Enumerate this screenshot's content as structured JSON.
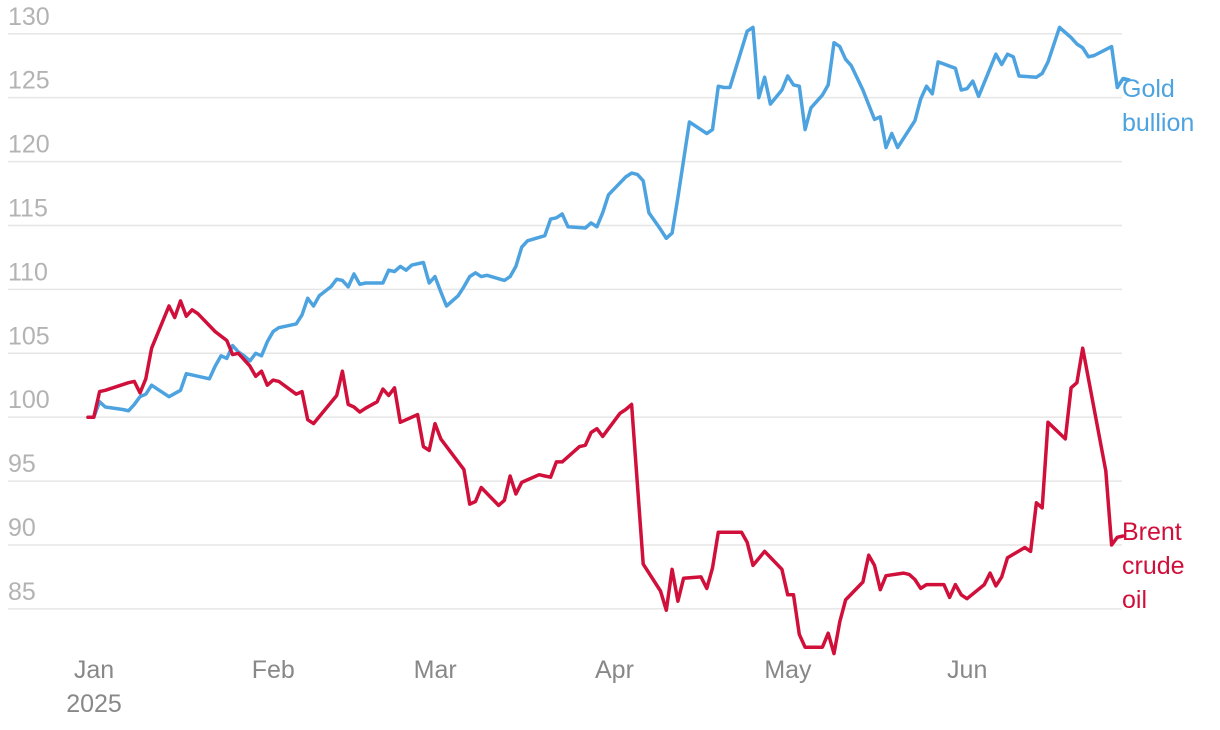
{
  "chart_data": {
    "type": "line",
    "x_axis": {
      "ticks": [
        {
          "date": "2025-01-01",
          "label": "Jan",
          "sublabel": "2025"
        },
        {
          "date": "2025-02-01",
          "label": "Feb"
        },
        {
          "date": "2025-03-01",
          "label": "Mar"
        },
        {
          "date": "2025-04-01",
          "label": "Apr"
        },
        {
          "date": "2025-05-01",
          "label": "May"
        },
        {
          "date": "2025-06-01",
          "label": "Jun"
        }
      ],
      "range": [
        "2025-01-01",
        "2025-06-25"
      ]
    },
    "y_axis": {
      "ticks": [
        85,
        90,
        95,
        100,
        105,
        110,
        115,
        120,
        125,
        130
      ],
      "range": [
        81,
        131
      ],
      "grid": true
    },
    "series": [
      {
        "name": "Gold bullion",
        "label_lines": [
          "Gold",
          "bullion"
        ],
        "color": "#4da3e0",
        "points": [
          [
            "2025-01-01",
            100.0
          ],
          [
            "2025-01-02",
            100.0
          ],
          [
            "2025-01-03",
            101.2
          ],
          [
            "2025-01-04",
            100.8
          ],
          [
            "2025-01-07",
            100.6
          ],
          [
            "2025-01-08",
            100.5
          ],
          [
            "2025-01-09",
            101.0
          ],
          [
            "2025-01-10",
            101.6
          ],
          [
            "2025-01-11",
            101.8
          ],
          [
            "2025-01-12",
            102.5
          ],
          [
            "2025-01-13",
            102.2
          ],
          [
            "2025-01-15",
            101.6
          ],
          [
            "2025-01-17",
            102.1
          ],
          [
            "2025-01-18",
            103.4
          ],
          [
            "2025-01-22",
            103.0
          ],
          [
            "2025-01-23",
            104.0
          ],
          [
            "2025-01-24",
            104.8
          ],
          [
            "2025-01-25",
            104.6
          ],
          [
            "2025-01-26",
            105.6
          ],
          [
            "2025-01-27",
            105.1
          ],
          [
            "2025-01-28",
            104.8
          ],
          [
            "2025-01-29",
            104.4
          ],
          [
            "2025-01-30",
            105.0
          ],
          [
            "2025-01-31",
            104.8
          ],
          [
            "2025-02-01",
            105.9
          ],
          [
            "2025-02-02",
            106.7
          ],
          [
            "2025-02-03",
            107.0
          ],
          [
            "2025-02-06",
            107.3
          ],
          [
            "2025-02-07",
            108.0
          ],
          [
            "2025-02-08",
            109.3
          ],
          [
            "2025-02-09",
            108.7
          ],
          [
            "2025-02-10",
            109.5
          ],
          [
            "2025-02-12",
            110.2
          ],
          [
            "2025-02-13",
            110.8
          ],
          [
            "2025-02-14",
            110.7
          ],
          [
            "2025-02-15",
            110.2
          ],
          [
            "2025-02-16",
            111.2
          ],
          [
            "2025-02-17",
            110.4
          ],
          [
            "2025-02-18",
            110.5
          ],
          [
            "2025-02-21",
            110.5
          ],
          [
            "2025-02-22",
            111.5
          ],
          [
            "2025-02-23",
            111.4
          ],
          [
            "2025-02-24",
            111.8
          ],
          [
            "2025-02-25",
            111.5
          ],
          [
            "2025-02-26",
            111.9
          ],
          [
            "2025-02-28",
            112.1
          ],
          [
            "2025-03-01",
            110.5
          ],
          [
            "2025-03-02",
            111.0
          ],
          [
            "2025-03-03",
            109.8
          ],
          [
            "2025-03-04",
            108.7
          ],
          [
            "2025-03-06",
            109.5
          ],
          [
            "2025-03-07",
            110.2
          ],
          [
            "2025-03-08",
            111.0
          ],
          [
            "2025-03-09",
            111.3
          ],
          [
            "2025-03-10",
            111.0
          ],
          [
            "2025-03-11",
            111.1
          ],
          [
            "2025-03-14",
            110.7
          ],
          [
            "2025-03-15",
            111.0
          ],
          [
            "2025-03-16",
            111.8
          ],
          [
            "2025-03-17",
            113.3
          ],
          [
            "2025-03-18",
            113.8
          ],
          [
            "2025-03-21",
            114.2
          ],
          [
            "2025-03-22",
            115.5
          ],
          [
            "2025-03-23",
            115.6
          ],
          [
            "2025-03-24",
            115.9
          ],
          [
            "2025-03-25",
            114.9
          ],
          [
            "2025-03-28",
            114.8
          ],
          [
            "2025-03-29",
            115.2
          ],
          [
            "2025-03-30",
            114.9
          ],
          [
            "2025-03-31",
            116.0
          ],
          [
            "2025-04-01",
            117.4
          ],
          [
            "2025-04-04",
            118.8
          ],
          [
            "2025-04-05",
            119.1
          ],
          [
            "2025-04-06",
            119.0
          ],
          [
            "2025-04-07",
            118.5
          ],
          [
            "2025-04-08",
            116.0
          ],
          [
            "2025-04-10",
            114.7
          ],
          [
            "2025-04-11",
            114.0
          ],
          [
            "2025-04-12",
            114.4
          ],
          [
            "2025-04-13",
            117.2
          ],
          [
            "2025-04-15",
            123.1
          ],
          [
            "2025-04-18",
            122.2
          ],
          [
            "2025-04-19",
            122.5
          ],
          [
            "2025-04-20",
            125.9
          ],
          [
            "2025-04-21",
            125.8
          ],
          [
            "2025-04-22",
            125.8
          ],
          [
            "2025-04-25",
            130.2
          ],
          [
            "2025-04-26",
            130.5
          ],
          [
            "2025-04-27",
            125.0
          ],
          [
            "2025-04-28",
            126.6
          ],
          [
            "2025-04-29",
            124.5
          ],
          [
            "2025-05-01",
            125.6
          ],
          [
            "2025-05-02",
            126.7
          ],
          [
            "2025-05-03",
            126.0
          ],
          [
            "2025-05-04",
            125.9
          ],
          [
            "2025-05-05",
            122.5
          ],
          [
            "2025-05-06",
            124.2
          ],
          [
            "2025-05-08",
            125.2
          ],
          [
            "2025-05-09",
            126.0
          ],
          [
            "2025-05-10",
            129.3
          ],
          [
            "2025-05-11",
            129.0
          ],
          [
            "2025-05-12",
            128.0
          ],
          [
            "2025-05-13",
            127.5
          ],
          [
            "2025-05-15",
            125.6
          ],
          [
            "2025-05-17",
            123.3
          ],
          [
            "2025-05-18",
            123.5
          ],
          [
            "2025-05-19",
            121.1
          ],
          [
            "2025-05-20",
            122.2
          ],
          [
            "2025-05-21",
            121.1
          ],
          [
            "2025-05-22",
            121.8
          ],
          [
            "2025-05-24",
            123.2
          ],
          [
            "2025-05-25",
            124.9
          ],
          [
            "2025-05-26",
            125.9
          ],
          [
            "2025-05-27",
            125.3
          ],
          [
            "2025-05-28",
            127.8
          ],
          [
            "2025-05-31",
            127.3
          ],
          [
            "2025-06-01",
            125.6
          ],
          [
            "2025-06-02",
            125.7
          ],
          [
            "2025-06-03",
            126.3
          ],
          [
            "2025-06-04",
            125.1
          ],
          [
            "2025-06-07",
            128.4
          ],
          [
            "2025-06-08",
            127.6
          ],
          [
            "2025-06-09",
            128.4
          ],
          [
            "2025-06-10",
            128.2
          ],
          [
            "2025-06-11",
            126.7
          ],
          [
            "2025-06-14",
            126.6
          ],
          [
            "2025-06-15",
            126.9
          ],
          [
            "2025-06-16",
            127.8
          ],
          [
            "2025-06-18",
            130.5
          ],
          [
            "2025-06-19",
            130.1
          ],
          [
            "2025-06-20",
            129.7
          ],
          [
            "2025-06-21",
            129.2
          ],
          [
            "2025-06-22",
            128.9
          ],
          [
            "2025-06-23",
            128.2
          ],
          [
            "2025-06-24",
            128.3
          ],
          [
            "2025-06-27",
            129.0
          ],
          [
            "2025-06-28",
            125.8
          ],
          [
            "2025-06-29",
            126.5
          ],
          [
            "2025-06-30",
            126.4
          ]
        ]
      },
      {
        "name": "Brent crude oil",
        "label_lines": [
          "Brent",
          "crude",
          "oil"
        ],
        "color": "#d0103a",
        "points": [
          [
            "2025-01-01",
            100.0
          ],
          [
            "2025-01-02",
            100.0
          ],
          [
            "2025-01-03",
            102.0
          ],
          [
            "2025-01-04",
            102.1
          ],
          [
            "2025-01-08",
            102.7
          ],
          [
            "2025-01-09",
            102.8
          ],
          [
            "2025-01-10",
            101.9
          ],
          [
            "2025-01-11",
            103.0
          ],
          [
            "2025-01-12",
            105.4
          ],
          [
            "2025-01-15",
            108.7
          ],
          [
            "2025-01-16",
            107.8
          ],
          [
            "2025-01-17",
            109.1
          ],
          [
            "2025-01-18",
            107.9
          ],
          [
            "2025-01-19",
            108.4
          ],
          [
            "2025-01-20",
            108.1
          ],
          [
            "2025-01-23",
            106.7
          ],
          [
            "2025-01-25",
            106.0
          ],
          [
            "2025-01-26",
            104.9
          ],
          [
            "2025-01-27",
            105.0
          ],
          [
            "2025-01-29",
            104.0
          ],
          [
            "2025-01-30",
            103.2
          ],
          [
            "2025-01-31",
            103.6
          ],
          [
            "2025-02-01",
            102.5
          ],
          [
            "2025-02-02",
            102.9
          ],
          [
            "2025-02-03",
            102.8
          ],
          [
            "2025-02-06",
            101.8
          ],
          [
            "2025-02-07",
            102.0
          ],
          [
            "2025-02-08",
            99.8
          ],
          [
            "2025-02-09",
            99.5
          ],
          [
            "2025-02-13",
            101.7
          ],
          [
            "2025-02-14",
            103.6
          ],
          [
            "2025-02-15",
            101.0
          ],
          [
            "2025-02-16",
            100.8
          ],
          [
            "2025-02-17",
            100.4
          ],
          [
            "2025-02-18",
            100.7
          ],
          [
            "2025-02-20",
            101.2
          ],
          [
            "2025-02-21",
            102.2
          ],
          [
            "2025-02-22",
            101.7
          ],
          [
            "2025-02-23",
            102.3
          ],
          [
            "2025-02-24",
            99.6
          ],
          [
            "2025-02-27",
            100.2
          ],
          [
            "2025-02-28",
            97.7
          ],
          [
            "2025-03-01",
            97.4
          ],
          [
            "2025-03-02",
            99.5
          ],
          [
            "2025-03-03",
            98.3
          ],
          [
            "2025-03-07",
            95.9
          ],
          [
            "2025-03-08",
            93.2
          ],
          [
            "2025-03-09",
            93.4
          ],
          [
            "2025-03-10",
            94.5
          ],
          [
            "2025-03-13",
            93.1
          ],
          [
            "2025-03-14",
            93.5
          ],
          [
            "2025-03-15",
            95.4
          ],
          [
            "2025-03-16",
            94.0
          ],
          [
            "2025-03-17",
            94.9
          ],
          [
            "2025-03-20",
            95.5
          ],
          [
            "2025-03-21",
            95.4
          ],
          [
            "2025-03-22",
            95.3
          ],
          [
            "2025-03-23",
            96.5
          ],
          [
            "2025-03-24",
            96.5
          ],
          [
            "2025-03-27",
            97.7
          ],
          [
            "2025-03-28",
            97.8
          ],
          [
            "2025-03-29",
            98.8
          ],
          [
            "2025-03-30",
            99.1
          ],
          [
            "2025-03-31",
            98.5
          ],
          [
            "2025-04-03",
            100.3
          ],
          [
            "2025-04-04",
            100.6
          ],
          [
            "2025-04-05",
            101.0
          ],
          [
            "2025-04-07",
            88.5
          ],
          [
            "2025-04-10",
            86.4
          ],
          [
            "2025-04-11",
            84.9
          ],
          [
            "2025-04-12",
            88.1
          ],
          [
            "2025-04-13",
            85.6
          ],
          [
            "2025-04-14",
            87.4
          ],
          [
            "2025-04-17",
            87.5
          ],
          [
            "2025-04-18",
            86.6
          ],
          [
            "2025-04-19",
            88.2
          ],
          [
            "2025-04-20",
            91.0
          ],
          [
            "2025-04-23",
            91.0
          ],
          [
            "2025-04-24",
            91.0
          ],
          [
            "2025-04-25",
            90.2
          ],
          [
            "2025-04-26",
            88.4
          ],
          [
            "2025-04-28",
            89.5
          ],
          [
            "2025-05-01",
            88.1
          ],
          [
            "2025-05-02",
            86.1
          ],
          [
            "2025-05-03",
            86.1
          ],
          [
            "2025-05-04",
            83.0
          ],
          [
            "2025-05-05",
            82.0
          ],
          [
            "2025-05-08",
            82.0
          ],
          [
            "2025-05-09",
            83.1
          ],
          [
            "2025-05-10",
            81.5
          ],
          [
            "2025-05-11",
            84.0
          ],
          [
            "2025-05-12",
            85.7
          ],
          [
            "2025-05-15",
            87.1
          ],
          [
            "2025-05-16",
            89.2
          ],
          [
            "2025-05-17",
            88.4
          ],
          [
            "2025-05-18",
            86.5
          ],
          [
            "2025-05-19",
            87.6
          ],
          [
            "2025-05-22",
            87.8
          ],
          [
            "2025-05-23",
            87.7
          ],
          [
            "2025-05-24",
            87.3
          ],
          [
            "2025-05-25",
            86.6
          ],
          [
            "2025-05-26",
            86.9
          ],
          [
            "2025-05-29",
            86.9
          ],
          [
            "2025-05-30",
            85.9
          ],
          [
            "2025-05-31",
            86.9
          ],
          [
            "2025-06-01",
            86.1
          ],
          [
            "2025-06-02",
            85.8
          ],
          [
            "2025-06-05",
            86.9
          ],
          [
            "2025-06-06",
            87.8
          ],
          [
            "2025-06-07",
            86.8
          ],
          [
            "2025-06-08",
            87.5
          ],
          [
            "2025-06-09",
            89.0
          ],
          [
            "2025-06-12",
            89.8
          ],
          [
            "2025-06-13",
            89.5
          ],
          [
            "2025-06-14",
            93.3
          ],
          [
            "2025-06-15",
            92.9
          ],
          [
            "2025-06-16",
            99.6
          ],
          [
            "2025-06-19",
            98.3
          ],
          [
            "2025-06-20",
            102.3
          ],
          [
            "2025-06-21",
            102.7
          ],
          [
            "2025-06-22",
            105.4
          ],
          [
            "2025-06-26",
            95.8
          ],
          [
            "2025-06-27",
            90.0
          ],
          [
            "2025-06-28",
            90.6
          ],
          [
            "2025-06-29",
            90.7
          ]
        ]
      }
    ]
  }
}
